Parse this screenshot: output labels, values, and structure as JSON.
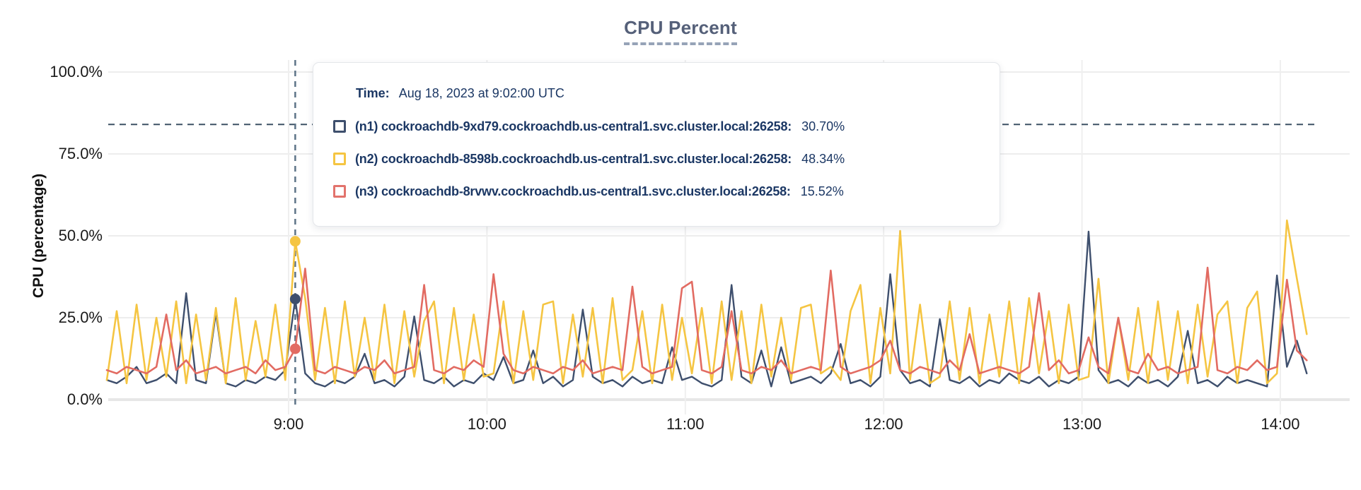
{
  "title": {
    "text": "CPU Percent"
  },
  "axes": {
    "y_title": "CPU (percentage)"
  },
  "tooltip": {
    "time_label": "Time:",
    "time_value": "Aug 18, 2023 at 9:02:00 UTC",
    "rows": [
      {
        "name": "(n1) cockroachdb-9xd79.cockroachdb.us-central1.svc.cluster.local:26258:",
        "value": "30.70%",
        "color": "#3e4f6d"
      },
      {
        "name": "(n2) cockroachdb-8598b.cockroachdb.us-central1.svc.cluster.local:26258:",
        "value": "48.34%",
        "color": "#f5c542"
      },
      {
        "name": "(n3) cockroachdb-8rvwv.cockroachdb.us-central1.svc.cluster.local:26258:",
        "value": "15.52%",
        "color": "#e2736c"
      }
    ]
  },
  "chart_data": {
    "type": "line",
    "title": "CPU Percent",
    "xlabel": "",
    "ylabel": "CPU (percentage)",
    "ylim": [
      0,
      100
    ],
    "grid": true,
    "legend_position": "tooltip",
    "y_ticks": [
      0,
      25,
      50,
      75,
      100
    ],
    "y_tick_labels": [
      "0.0%",
      "25.0%",
      "50.0%",
      "75.0%",
      "100.0%"
    ],
    "x_start_time": "8:05",
    "x_step_minutes": 3,
    "x_ticks_minutes": [
      55,
      115,
      175,
      235,
      295,
      355
    ],
    "x_tick_labels": [
      "9:00",
      "10:00",
      "11:00",
      "12:00",
      "13:00",
      "14:00"
    ],
    "threshold_line_pct": 84,
    "cursor": {
      "x_minutes": 57,
      "time": "Aug 18, 2023 at 9:02:00 UTC",
      "values": [
        30.7,
        48.34,
        15.52
      ]
    },
    "series": [
      {
        "name": "(n1) cockroachdb-9xd79.cockroachdb.us-central1.svc.cluster.local:26258",
        "color": "#3e4f6d",
        "values": [
          6,
          5,
          7,
          10,
          5,
          6,
          8,
          5,
          32.5,
          6,
          5,
          26.5,
          5,
          4,
          6,
          5,
          7,
          6,
          9,
          30.7,
          8,
          5,
          4,
          6,
          5,
          7,
          14,
          5,
          6,
          4,
          7,
          25.4,
          6,
          5,
          7,
          4,
          6,
          5,
          8,
          6,
          13,
          5,
          6,
          15,
          5,
          7,
          4,
          6,
          27.5,
          7,
          5,
          6,
          4,
          7,
          5,
          6,
          5,
          16,
          6,
          7,
          5,
          4,
          6,
          35,
          7,
          5,
          15,
          4,
          16,
          5,
          6,
          7,
          5,
          8,
          17,
          5,
          6,
          4,
          7,
          38.3,
          9,
          5,
          6,
          4,
          24.6,
          6,
          5,
          7,
          4,
          6,
          5,
          8,
          6,
          5,
          7,
          4,
          6,
          5,
          7,
          51.3,
          9,
          5,
          6,
          4,
          7,
          5,
          6,
          4,
          7,
          21,
          5,
          6,
          4,
          7,
          5,
          6,
          5,
          4,
          37.9,
          10,
          18,
          8
        ]
      },
      {
        "name": "(n2) cockroachdb-8598b.cockroachdb.us-central1.svc.cluster.local:26258",
        "color": "#f5c542",
        "values": [
          6,
          27,
          5,
          29,
          6,
          25,
          7,
          30,
          5,
          26,
          6,
          28,
          5,
          31,
          6,
          24,
          7,
          29,
          6,
          48.34,
          31,
          6,
          28,
          5,
          30,
          7,
          25,
          6,
          29,
          5,
          27,
          7,
          24,
          30,
          5,
          28,
          6,
          26,
          7,
          8,
          30,
          5,
          27,
          6,
          29,
          30,
          5,
          26,
          7,
          28,
          5,
          31,
          6,
          9,
          27,
          5,
          29,
          6,
          25,
          8,
          28,
          5,
          30,
          6,
          27,
          5,
          29,
          7,
          25,
          6,
          28,
          29,
          8,
          10,
          6,
          27,
          35,
          5,
          28,
          8,
          51.5,
          6,
          29,
          5,
          7,
          30,
          6,
          28,
          5,
          26,
          7,
          30,
          5,
          31,
          8,
          27,
          5,
          29,
          6,
          7,
          36.9,
          5,
          25,
          6,
          28,
          5,
          30,
          6,
          27,
          5,
          29,
          7,
          26,
          30,
          5,
          28,
          33,
          5,
          8,
          54.7,
          37,
          20
        ]
      },
      {
        "name": "(n3) cockroachdb-8rvwv.cockroachdb.us-central1.svc.cluster.local:26258",
        "color": "#e26b62",
        "values": [
          9,
          8,
          10,
          9,
          8,
          10,
          26,
          9,
          12,
          8,
          9,
          10,
          8,
          9,
          10,
          8,
          12,
          9,
          10,
          15.52,
          40,
          9,
          8,
          10,
          9,
          8,
          10,
          9,
          12,
          8,
          9,
          10,
          35,
          9,
          8,
          10,
          9,
          12,
          10,
          38.3,
          14,
          9,
          8,
          10,
          9,
          8,
          10,
          9,
          12,
          8,
          9,
          10,
          9,
          34.5,
          10,
          8,
          9,
          10,
          34,
          36,
          9,
          8,
          10,
          27,
          9,
          8,
          10,
          9,
          12,
          8,
          9,
          10,
          9,
          39.4,
          10,
          8,
          9,
          10,
          12,
          18,
          9,
          8,
          10,
          9,
          8,
          12,
          9,
          20,
          8,
          9,
          10,
          9,
          8,
          10,
          32.5,
          9,
          12,
          8,
          9,
          19,
          10,
          8,
          25,
          9,
          8,
          14,
          9,
          10,
          8,
          9,
          10,
          40.3,
          9,
          8,
          10,
          9,
          12,
          9,
          10,
          36.6,
          15,
          12
        ]
      }
    ]
  }
}
